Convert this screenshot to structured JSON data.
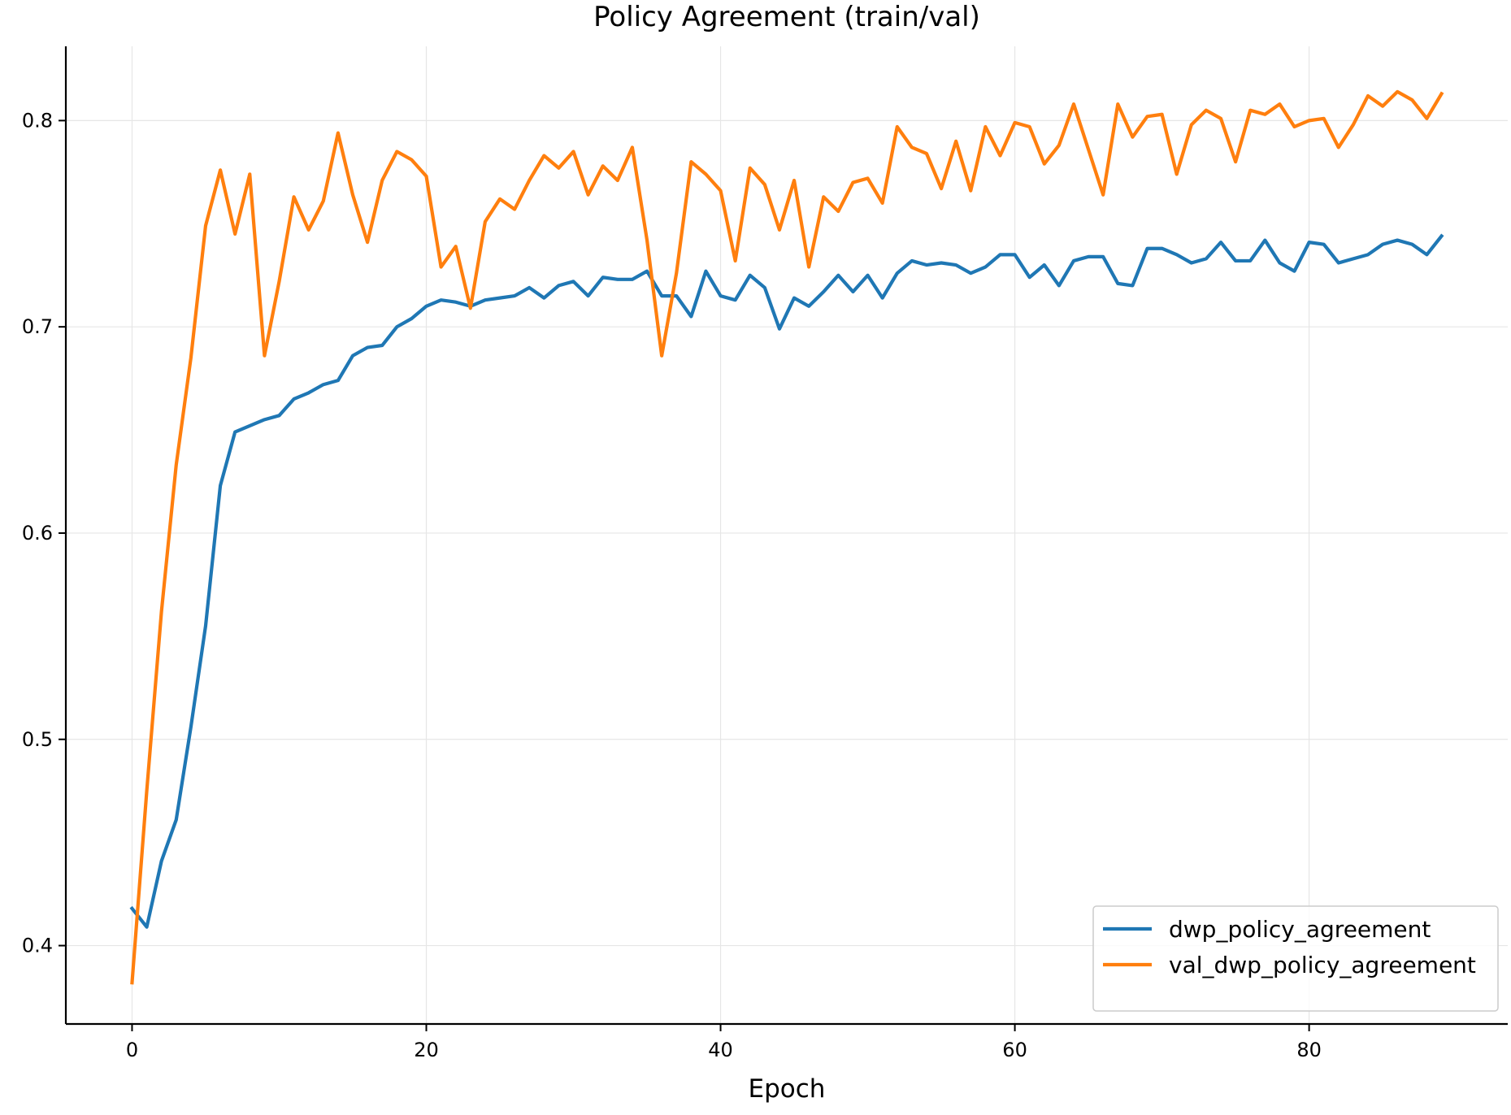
{
  "chart_data": {
    "type": "line",
    "title": "Policy Agreement (train/val)",
    "xlabel": "Epoch",
    "ylabel": "",
    "xlim": [
      -4.5,
      93.5
    ],
    "ylim": [
      0.362,
      0.836
    ],
    "xticks": [
      0,
      20,
      40,
      60,
      80
    ],
    "xtick_labels": [
      "0",
      "20",
      "40",
      "60",
      "80"
    ],
    "yticks": [
      0.4,
      0.5,
      0.6,
      0.7,
      0.8
    ],
    "ytick_labels": [
      "0.4",
      "0.5",
      "0.6",
      "0.7",
      "0.8"
    ],
    "grid": true,
    "legend_position": "lower-right",
    "series": [
      {
        "name": "dwp_policy_agreement",
        "color": "#1f77b4",
        "x": [
          0,
          1,
          2,
          3,
          4,
          5,
          6,
          7,
          8,
          9,
          10,
          11,
          12,
          13,
          14,
          15,
          16,
          17,
          18,
          19,
          20,
          21,
          22,
          23,
          24,
          25,
          26,
          27,
          28,
          29,
          30,
          31,
          32,
          33,
          34,
          35,
          36,
          37,
          38,
          39,
          40,
          41,
          42,
          43,
          44,
          45,
          46,
          47,
          48,
          49,
          50,
          51,
          52,
          53,
          54,
          55,
          56,
          57,
          58,
          59,
          60,
          61,
          62,
          63,
          64,
          65,
          66,
          67,
          68,
          69,
          70,
          71,
          72,
          73,
          74,
          75,
          76,
          77,
          78,
          79,
          80,
          81,
          82,
          83,
          84,
          85,
          86,
          87,
          88,
          89
        ],
        "values": [
          0.418,
          0.409,
          0.441,
          0.461,
          0.506,
          0.555,
          0.623,
          0.649,
          0.652,
          0.655,
          0.657,
          0.665,
          0.668,
          0.672,
          0.674,
          0.686,
          0.69,
          0.691,
          0.7,
          0.704,
          0.71,
          0.713,
          0.712,
          0.71,
          0.713,
          0.714,
          0.715,
          0.719,
          0.714,
          0.72,
          0.722,
          0.715,
          0.724,
          0.723,
          0.723,
          0.727,
          0.715,
          0.715,
          0.705,
          0.727,
          0.715,
          0.713,
          0.725,
          0.719,
          0.699,
          0.714,
          0.71,
          0.717,
          0.725,
          0.717,
          0.725,
          0.714,
          0.726,
          0.732,
          0.73,
          0.731,
          0.73,
          0.726,
          0.729,
          0.735,
          0.735,
          0.724,
          0.73,
          0.72,
          0.732,
          0.734,
          0.734,
          0.721,
          0.72,
          0.738,
          0.738,
          0.735,
          0.731,
          0.733,
          0.741,
          0.732,
          0.732,
          0.742,
          0.731,
          0.727,
          0.741,
          0.74,
          0.731,
          0.733,
          0.735,
          0.74,
          0.742,
          0.74,
          0.735,
          0.744
        ]
      },
      {
        "name": "val_dwp_policy_agreement",
        "color": "#ff7f0e",
        "x": [
          0,
          1,
          2,
          3,
          4,
          5,
          6,
          7,
          8,
          9,
          10,
          11,
          12,
          13,
          14,
          15,
          16,
          17,
          18,
          19,
          20,
          21,
          22,
          23,
          24,
          25,
          26,
          27,
          28,
          29,
          30,
          31,
          32,
          33,
          34,
          35,
          36,
          37,
          38,
          39,
          40,
          41,
          42,
          43,
          44,
          45,
          46,
          47,
          48,
          49,
          50,
          51,
          52,
          53,
          54,
          55,
          56,
          57,
          58,
          59,
          60,
          61,
          62,
          63,
          64,
          65,
          66,
          67,
          68,
          69,
          70,
          71,
          72,
          73,
          74,
          75,
          76,
          77,
          78,
          79,
          80,
          81,
          82,
          83,
          84,
          85,
          86,
          87,
          88,
          89
        ],
        "values": [
          0.382,
          0.475,
          0.562,
          0.633,
          0.685,
          0.749,
          0.776,
          0.745,
          0.774,
          0.686,
          0.722,
          0.763,
          0.747,
          0.761,
          0.794,
          0.764,
          0.741,
          0.771,
          0.785,
          0.781,
          0.773,
          0.729,
          0.739,
          0.709,
          0.751,
          0.762,
          0.757,
          0.771,
          0.783,
          0.777,
          0.785,
          0.764,
          0.778,
          0.771,
          0.787,
          0.742,
          0.686,
          0.726,
          0.78,
          0.774,
          0.766,
          0.732,
          0.777,
          0.769,
          0.747,
          0.771,
          0.729,
          0.763,
          0.756,
          0.77,
          0.772,
          0.76,
          0.797,
          0.787,
          0.784,
          0.767,
          0.79,
          0.766,
          0.797,
          0.783,
          0.799,
          0.797,
          0.779,
          0.788,
          0.808,
          0.786,
          0.764,
          0.808,
          0.792,
          0.802,
          0.803,
          0.774,
          0.798,
          0.805,
          0.801,
          0.78,
          0.805,
          0.803,
          0.808,
          0.797,
          0.8,
          0.801,
          0.787,
          0.798,
          0.812,
          0.807,
          0.814,
          0.81,
          0.801,
          0.813
        ]
      }
    ]
  }
}
